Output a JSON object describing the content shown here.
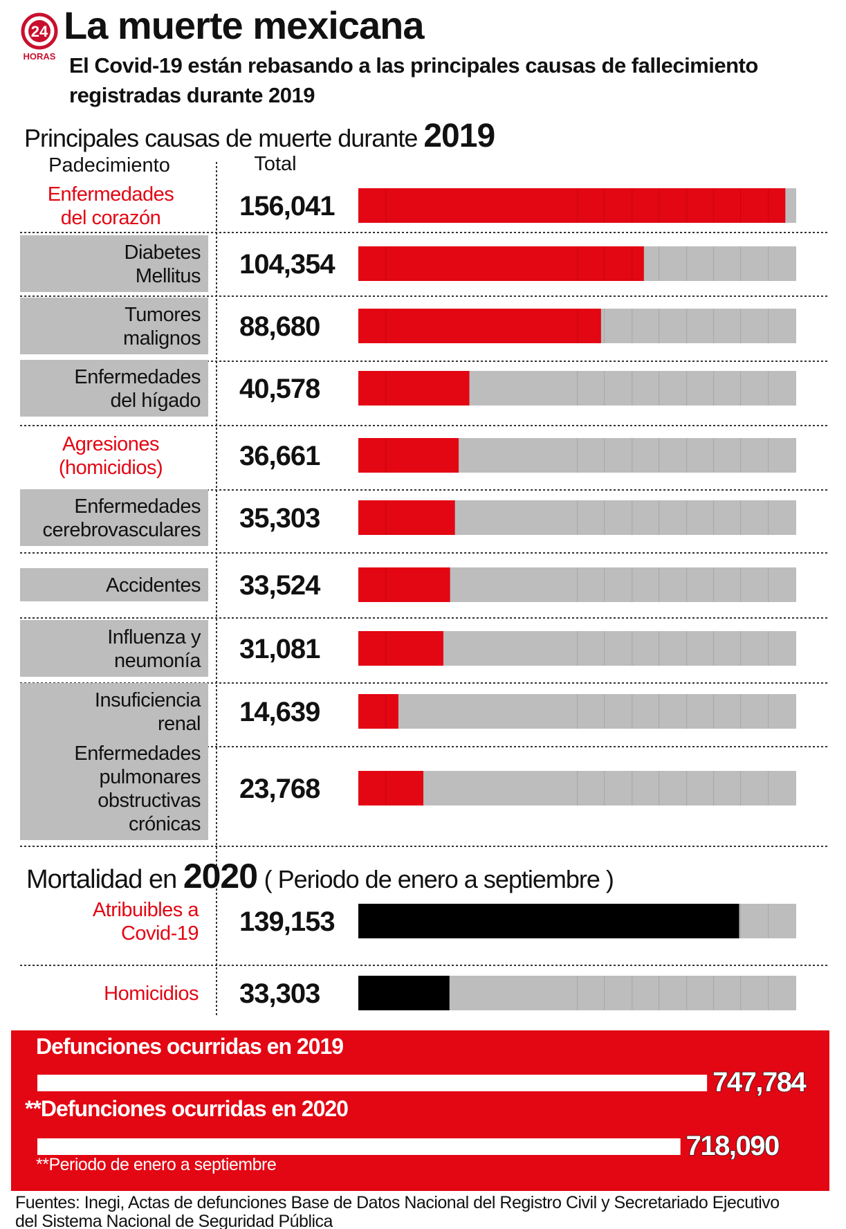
{
  "header": {
    "logo_number": "24",
    "logo_name": "HORAS",
    "title": "La muerte mexicana",
    "subtitle": [
      "El Covid-19 están rebasando a las principales causas de fallecimiento",
      "registradas durante 2019"
    ]
  },
  "chart_data": [
    {
      "type": "bar",
      "title": "Principales causas de muerte durante",
      "title_year": "2019",
      "category_header": "Padecimiento",
      "value_header": "Total",
      "categories": [
        [
          "Enfermedades",
          "del corazón"
        ],
        [
          "Diabetes",
          "Mellitus"
        ],
        [
          "Tumores",
          "malignos"
        ],
        [
          "Enfermedades",
          "del hígado"
        ],
        [
          "Agresiones",
          "(homicidios)"
        ],
        [
          "Enfermedades",
          "cerebrovasculares"
        ],
        [
          "Accidentes"
        ],
        [
          "Influenza y",
          "neumonía"
        ],
        [
          "Insuficiencia",
          "renal"
        ],
        [
          "Enfermedades",
          "pulmonares",
          "obstructivas",
          "crónicas"
        ]
      ],
      "values": [
        156041,
        104354,
        88680,
        40578,
        36661,
        35303,
        33524,
        31081,
        14639,
        23768
      ],
      "value_labels": [
        "156,041",
        "104,354",
        "88,680",
        "40,578",
        "36,661",
        "35,303",
        "33,524",
        "31,081",
        "14,639",
        "23,768"
      ],
      "label_colors": [
        "#e30613",
        "#111111",
        "#111111",
        "#111111",
        "#e30613",
        "#111111",
        "#111111",
        "#111111",
        "#111111",
        "#111111"
      ],
      "label_box": [
        false,
        true,
        true,
        true,
        false,
        true,
        true,
        true,
        true,
        true
      ],
      "color": "#e30613",
      "track_color": "#bdbdbd",
      "xlim": [
        0,
        160000
      ]
    },
    {
      "type": "bar",
      "title": "Mortalidad en",
      "title_year": "2020",
      "title_note": "( Periodo de enero a septiembre )",
      "categories": [
        [
          "Atribuibles a",
          "Covid-19"
        ],
        [
          "Homicidios"
        ]
      ],
      "values": [
        139153,
        33303
      ],
      "value_labels": [
        "139,153",
        "33,303"
      ],
      "label_colors": [
        "#e30613",
        "#e30613"
      ],
      "label_box": [
        false,
        false
      ],
      "color": "#000000",
      "track_color": "#bdbdbd",
      "xlim": [
        0,
        160000
      ]
    },
    {
      "type": "bar",
      "categories": [
        [
          "Defunciones ocurridas en 2019"
        ],
        [
          "**Defunciones ocurridas en 2020"
        ]
      ],
      "values": [
        747784,
        718090
      ],
      "value_labels": [
        "747,784",
        "718,090"
      ],
      "footnote": "**Periodo de enero a septiembre",
      "color": "#ffffff",
      "background": "#e30613",
      "xlim": [
        0,
        750000
      ]
    }
  ],
  "source": [
    "Fuentes: Inegi, Actas de defunciones Base de Datos Nacional del Registro Civil y Secretariado Ejecutivo",
    "del Sistema Nacional de Seguridad Pública"
  ]
}
